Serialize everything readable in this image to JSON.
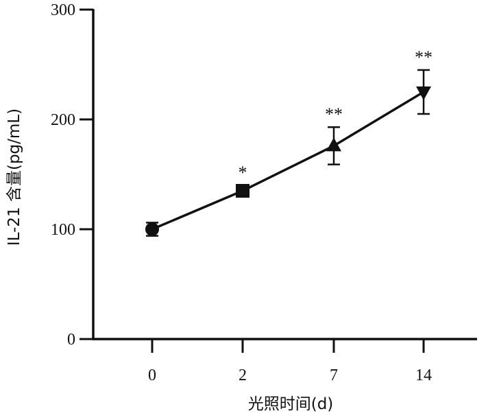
{
  "chart_data": {
    "type": "line",
    "xlabel": "光照时间(d)",
    "ylabel": "IL-21 含量(pg/mL)",
    "categories": [
      "0",
      "2",
      "7",
      "14"
    ],
    "ylim": [
      0,
      300
    ],
    "yticks": [
      "0",
      "100",
      "200",
      "300"
    ],
    "series": [
      {
        "values": [
          100,
          135,
          176,
          225
        ],
        "error": [
          6,
          5,
          17,
          20
        ],
        "markers": [
          "circle",
          "square",
          "triangle-up",
          "triangle-down"
        ],
        "significance": [
          "",
          "*",
          "**",
          "**"
        ]
      }
    ],
    "grid": false,
    "legend": "none",
    "color": "#111111"
  }
}
